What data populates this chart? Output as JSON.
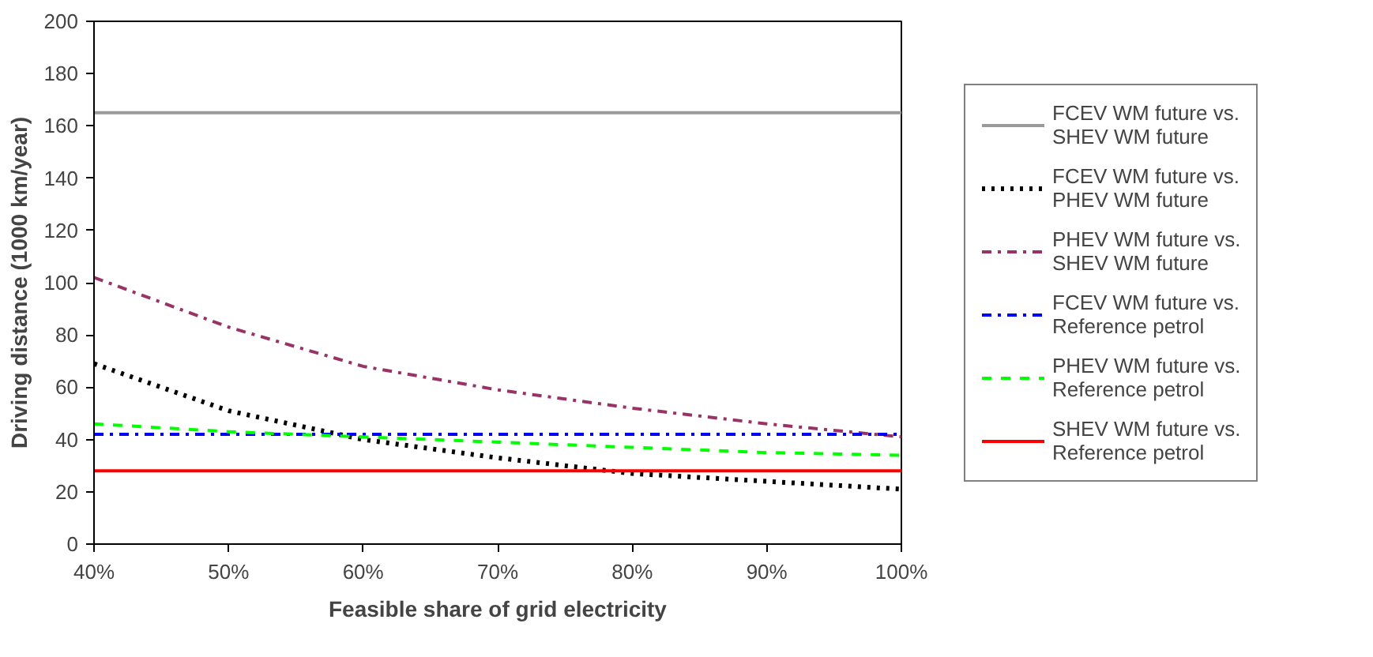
{
  "chart_data": {
    "type": "line",
    "xlabel": "Feasible share of grid electricity",
    "ylabel": "Driving distance (1000 km/year)",
    "x": [
      40,
      50,
      60,
      70,
      80,
      90,
      100
    ],
    "xlim": [
      40,
      100
    ],
    "xticks": [
      {
        "value": 40,
        "label": "40%"
      },
      {
        "value": 50,
        "label": "50%"
      },
      {
        "value": 60,
        "label": "60%"
      },
      {
        "value": 70,
        "label": "70%"
      },
      {
        "value": 80,
        "label": "80%"
      },
      {
        "value": 90,
        "label": "90%"
      },
      {
        "value": 100,
        "label": "100%"
      }
    ],
    "ylim": [
      0,
      200
    ],
    "yticks": [
      0,
      20,
      40,
      60,
      80,
      100,
      120,
      140,
      160,
      180,
      200
    ],
    "grid": false,
    "legend": "right",
    "marker": "none",
    "series": [
      {
        "name": "FCEV WM future vs. SHEV WM future",
        "color": "#999999",
        "line_style": "solid",
        "values": [
          165,
          165,
          165,
          165,
          165,
          165,
          165
        ]
      },
      {
        "name": "FCEV WM future vs. PHEV WM future",
        "color": "#000000",
        "line_style": "dotted",
        "values": [
          69,
          51,
          40,
          33,
          27,
          24,
          21
        ]
      },
      {
        "name": "PHEV WM future vs. SHEV WM future",
        "color": "#993366",
        "line_style": "dashdot",
        "values": [
          102,
          83,
          68,
          59,
          52,
          46,
          41
        ]
      },
      {
        "name": "FCEV WM future vs. Reference petrol",
        "color": "#0000ff",
        "line_style": "dashdot",
        "values": [
          42,
          42,
          42,
          42,
          42,
          42,
          42
        ]
      },
      {
        "name": "PHEV WM future vs. Reference petrol",
        "color": "#00ff00",
        "line_style": "dashed",
        "values": [
          46,
          43,
          41,
          39,
          37,
          35,
          34
        ]
      },
      {
        "name": "SHEV WM future vs. Reference petrol",
        "color": "#ff0000",
        "line_style": "solid",
        "values": [
          28,
          28,
          28,
          28,
          28,
          28,
          28
        ]
      }
    ]
  }
}
